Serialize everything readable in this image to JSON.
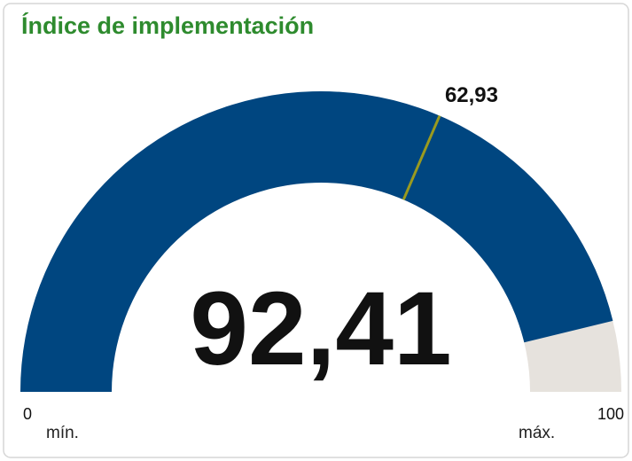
{
  "chart_data": {
    "type": "gauge",
    "title": "Índice de implementación",
    "values": [
      92.41
    ],
    "value_labels": [
      "92,41"
    ],
    "target": 62.93,
    "target_label": "62,93",
    "ylim": [
      0,
      100
    ],
    "min_label": "mín.",
    "max_label": "máx.",
    "color": "#004680",
    "track_color": "#e6e2dd",
    "target_color": "#9a9a1f",
    "title_color": "#2e8b2e"
  }
}
